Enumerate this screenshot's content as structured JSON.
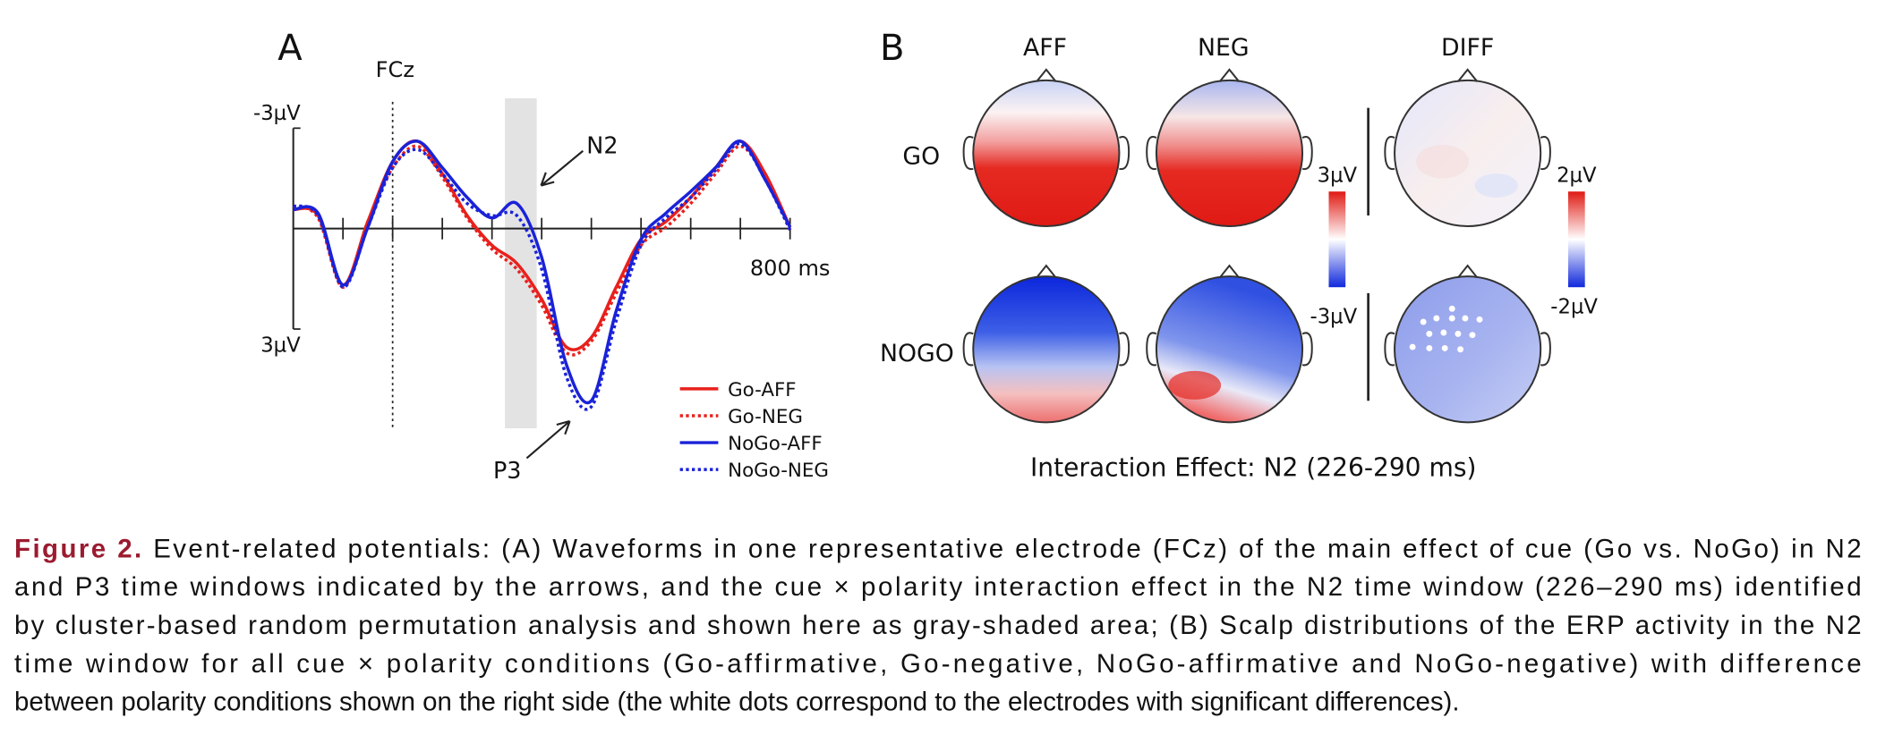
{
  "chart_data": {
    "type": "line",
    "panel_label": "A",
    "vline": {
      "value": 0,
      "label": "FCz"
    },
    "highlight": [
      226,
      290
    ],
    "annotations": [
      "N2",
      "P3"
    ],
    "x": [
      -200,
      -150,
      -100,
      -50,
      0,
      50,
      100,
      150,
      200,
      250,
      300,
      350,
      400,
      450,
      500,
      550,
      600,
      650,
      700,
      750,
      800
    ],
    "xlim": [
      -200,
      800
    ],
    "xticks": [
      -100,
      0,
      100,
      200,
      300,
      400,
      500,
      600,
      700,
      {
        "value": 800,
        "label": "800 ms"
      }
    ],
    "ylim": [
      -3,
      3
    ],
    "y_inverted": true,
    "yticks": [
      {
        "value": -3,
        "label": "-3µV"
      },
      {
        "value": 3,
        "label": "3µV"
      }
    ],
    "series": [
      {
        "name": "Go-AFF",
        "color": "#e8201c",
        "line_style": "solid",
        "values": [
          -0.57,
          -0.39,
          1.68,
          -0.21,
          -2.0,
          -2.61,
          -1.64,
          -0.39,
          0.5,
          1.04,
          2.11,
          3.54,
          3.25,
          1.75,
          0.32,
          -0.21,
          -0.93,
          -1.82,
          -2.61,
          -1.64,
          -0.04
        ]
      },
      {
        "name": "Go-NEG",
        "color": "#e8201c",
        "line_style": "dotted",
        "values": [
          -0.68,
          -0.32,
          1.75,
          -0.21,
          -1.82,
          -2.46,
          -1.54,
          -0.32,
          0.61,
          1.21,
          2.29,
          3.71,
          3.36,
          1.93,
          0.5,
          -0.04,
          -0.75,
          -1.64,
          -2.46,
          -1.54,
          0.04
        ]
      },
      {
        "name": "NoGo-AFF",
        "color": "#1a22d8",
        "line_style": "solid",
        "values": [
          -0.57,
          -0.46,
          1.68,
          -0.04,
          -2.0,
          -2.61,
          -1.82,
          -0.93,
          -0.32,
          -0.75,
          0.86,
          4.07,
          5.14,
          2.46,
          0.32,
          -0.46,
          -1.11,
          -1.82,
          -2.61,
          -1.46,
          -0.04
        ]
      },
      {
        "name": "NoGo-NEG",
        "color": "#1a22d8",
        "line_style": "dotted",
        "values": [
          -0.68,
          -0.39,
          1.75,
          -0.04,
          -1.82,
          -2.36,
          -1.64,
          -0.75,
          -0.39,
          -0.39,
          1.21,
          4.43,
          5.32,
          2.75,
          0.5,
          -0.32,
          -0.93,
          -1.75,
          -2.54,
          -1.46,
          0.04
        ]
      }
    ]
  },
  "panel_b": {
    "label": "B",
    "columns": [
      "AFF",
      "NEG",
      "DIFF"
    ],
    "rows": [
      "GO",
      "NOGO"
    ],
    "colorbars": [
      {
        "max": "3µV",
        "min": "-3µV"
      },
      {
        "max": "2µV",
        "min": "-2µV"
      }
    ],
    "title": "Interaction Effect: N2 (226-290 ms)"
  },
  "caption": {
    "label": "Figure 2.",
    "lines": [
      "Event-related potentials: (A) Waveforms in one representative electrode (FCz) of the main effect of cue (Go vs. NoGo) in N2",
      "and P3 time windows indicated by the arrows, and the cue × polarity interaction effect in the N2 time window (226–290 ms) identified",
      "by cluster-based random permutation analysis and shown here as gray-shaded area; (B) Scalp distributions of the ERP activity in the N2",
      "time window for all cue × polarity conditions (Go-affirmative, Go-negative, NoGo-affirmative and NoGo-negative) with difference",
      "between polarity conditions shown on the right side (the white dots correspond to the electrodes with significant differences)."
    ]
  }
}
